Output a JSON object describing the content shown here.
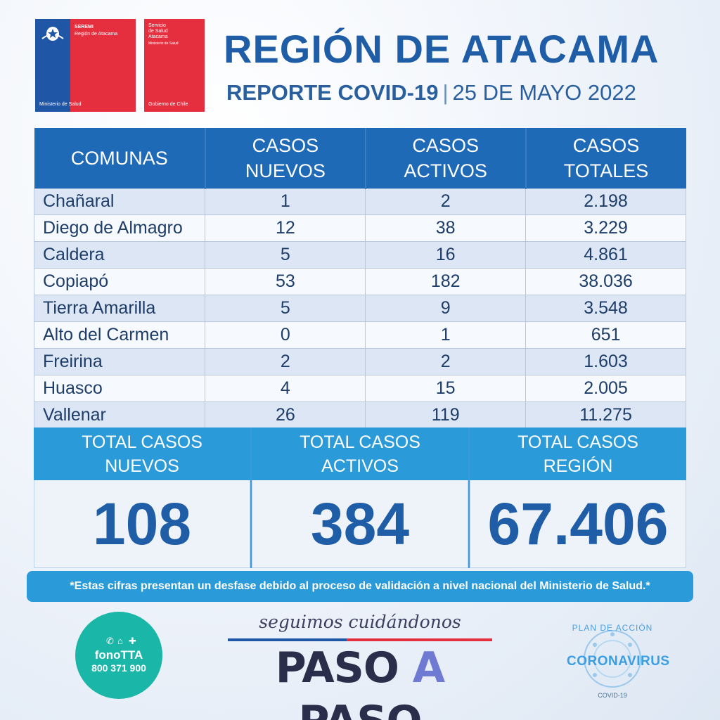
{
  "logos": {
    "seremi": {
      "title": "SEREMI",
      "subtitle": "Región de Atacama",
      "footer": "Ministerio de Salud"
    },
    "servicio": {
      "line1": "Servicio",
      "line2": "de Salud",
      "line3": "Atacama",
      "line4": "Ministerio de Salud",
      "footer": "Gobierno de Chile"
    }
  },
  "header": {
    "title": "REGIÓN DE ATACAMA",
    "report": "REPORTE COVID-19",
    "separator": "|",
    "date": "25 DE MAYO 2022"
  },
  "table": {
    "headers": [
      "COMUNAS",
      "CASOS NUEVOS",
      "CASOS ACTIVOS",
      "CASOS TOTALES"
    ],
    "rows": [
      {
        "comuna": "Chañaral",
        "nuevos": "1",
        "activos": "2",
        "totales": "2.198"
      },
      {
        "comuna": "Diego de Almagro",
        "nuevos": "12",
        "activos": "38",
        "totales": "3.229"
      },
      {
        "comuna": "Caldera",
        "nuevos": "5",
        "activos": "16",
        "totales": "4.861"
      },
      {
        "comuna": "Copiapó",
        "nuevos": "53",
        "activos": "182",
        "totales": "38.036"
      },
      {
        "comuna": "Tierra Amarilla",
        "nuevos": "5",
        "activos": "9",
        "totales": "3.548"
      },
      {
        "comuna": "Alto del Carmen",
        "nuevos": "0",
        "activos": "1",
        "totales": "651"
      },
      {
        "comuna": "Freirina",
        "nuevos": "2",
        "activos": "2",
        "totales": "1.603"
      },
      {
        "comuna": "Huasco",
        "nuevos": "4",
        "activos": "15",
        "totales": "2.005"
      },
      {
        "comuna": "Vallenar",
        "nuevos": "26",
        "activos": "119",
        "totales": "11.275"
      }
    ]
  },
  "totals": [
    {
      "label_1": "TOTAL CASOS",
      "label_2": "NUEVOS",
      "value": "108"
    },
    {
      "label_1": "TOTAL CASOS",
      "label_2": "ACTIVOS",
      "value": "384"
    },
    {
      "label_1": "TOTAL CASOS",
      "label_2": "REGIÓN",
      "value": "67.406"
    }
  ],
  "note": "*Estas cifras presentan un desfase debido al proceso de validación a nivel nacional del Ministerio de Salud.*",
  "footer": {
    "fono_name": "fonoTTA",
    "fono_number": "800 371 900",
    "slogan": "seguimos cuidándonos",
    "paso_1": "PASO",
    "paso_2": "A",
    "paso_3": "PASO",
    "plan": "PLAN DE ACCIÓN",
    "corona": "CORONAVIRUS",
    "covid": "COVID-19"
  },
  "colors": {
    "brand_blue": "#1f5ea6",
    "header_blue": "#1f6ab7",
    "light_blue": "#2b9ad8",
    "red": "#e52f3f"
  }
}
